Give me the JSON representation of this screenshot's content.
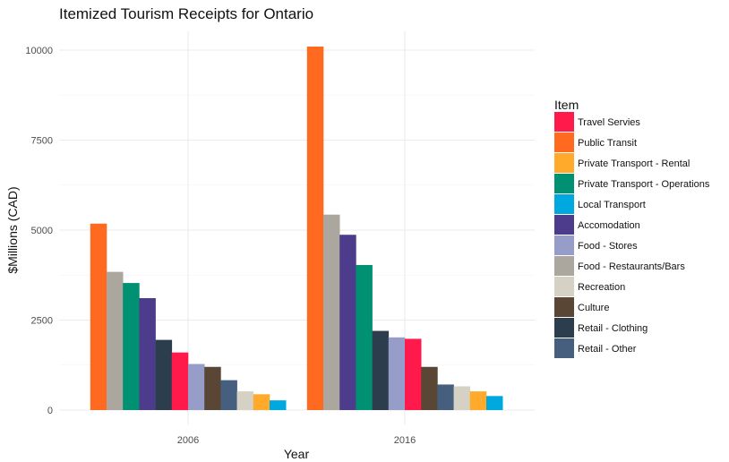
{
  "chart_data": {
    "type": "bar",
    "title": "Itemized Tourism Receipts for Ontario",
    "xlabel": "Year",
    "ylabel": "$Millions (CAD)",
    "categories": [
      "2006",
      "2016"
    ],
    "ylim": [
      0,
      10500
    ],
    "yticks": [
      0,
      2500,
      5000,
      7500,
      10000
    ],
    "grid": true,
    "legend": {
      "title": "Item",
      "position": "right"
    },
    "series": [
      {
        "name": "Travel Servies",
        "color": "#FF1A4B",
        "values": [
          1600,
          1980
        ]
      },
      {
        "name": "Public Transit",
        "color": "#FF6A20",
        "values": [
          5180,
          10100
        ]
      },
      {
        "name": "Private Transport - Rental",
        "color": "#FFAA2A",
        "values": [
          440,
          520
        ]
      },
      {
        "name": "Private Transport - Operations",
        "color": "#009173",
        "values": [
          3530,
          4030
        ]
      },
      {
        "name": "Local Transport",
        "color": "#00A8E0",
        "values": [
          270,
          390
        ]
      },
      {
        "name": "Accomodation",
        "color": "#4D3C8C",
        "values": [
          3110,
          4870
        ]
      },
      {
        "name": "Food - Stores",
        "color": "#979DC9",
        "values": [
          1280,
          2020
        ]
      },
      {
        "name": "Food - Restaurants/Bars",
        "color": "#ABA79E",
        "values": [
          3840,
          5430
        ]
      },
      {
        "name": "Recreation",
        "color": "#D5D1C5",
        "values": [
          520,
          660
        ]
      },
      {
        "name": "Culture",
        "color": "#594635",
        "values": [
          1200,
          1200
        ]
      },
      {
        "name": "Retail - Clothing",
        "color": "#2C3E4E",
        "values": [
          1950,
          2200
        ]
      },
      {
        "name": "Retail - Other",
        "color": "#475F7E",
        "values": [
          830,
          710
        ]
      }
    ]
  }
}
